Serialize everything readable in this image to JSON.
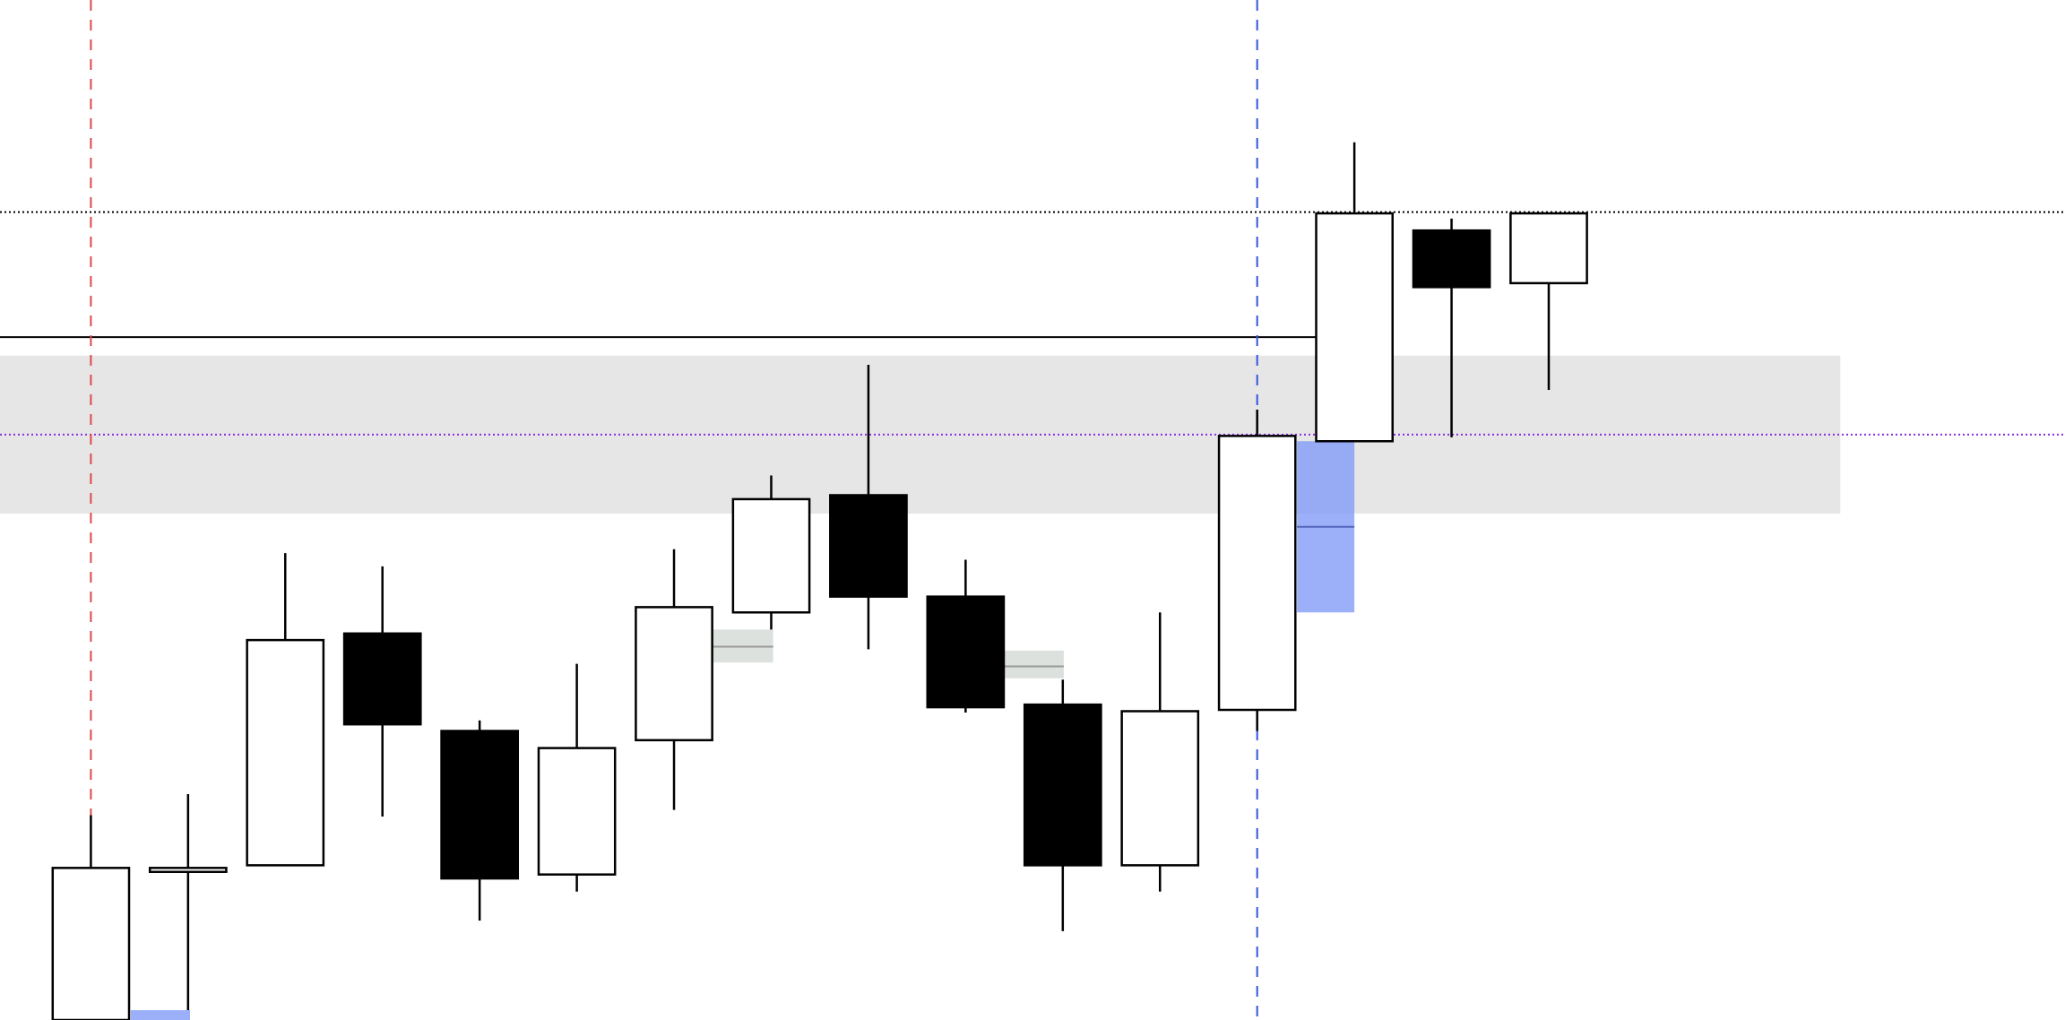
{
  "chart_data": {
    "type": "candlestick",
    "title": "",
    "xlabel": "",
    "ylabel": "",
    "axes_visible": false,
    "grid": false,
    "ylim": [
      0,
      774
    ],
    "xlim_index": [
      -0.94,
      20.3
    ],
    "candles": [
      {
        "o": -30,
        "h": 155,
        "l": -40,
        "c": 115
      },
      {
        "o": 112,
        "h": 171,
        "l": 7,
        "c": 115
      },
      {
        "o": 117,
        "h": 354,
        "l": 117,
        "c": 288
      },
      {
        "o": 293,
        "h": 344,
        "l": 154,
        "c": 224
      },
      {
        "o": 219,
        "h": 227,
        "l": 75,
        "c": 107
      },
      {
        "o": 110,
        "h": 270,
        "l": 97,
        "c": 206
      },
      {
        "o": 212,
        "h": 357,
        "l": 159,
        "c": 313
      },
      {
        "o": 309,
        "h": 413,
        "l": 296,
        "c": 395
      },
      {
        "o": 398,
        "h": 497,
        "l": 281,
        "c": 321
      },
      {
        "o": 321,
        "h": 349,
        "l": 233,
        "c": 237
      },
      {
        "o": 239,
        "h": 258,
        "l": 67,
        "c": 117
      },
      {
        "o": 117,
        "h": 309,
        "l": 97,
        "c": 234
      },
      {
        "o": 235,
        "h": 463,
        "l": 219,
        "c": 443
      },
      {
        "o": 439,
        "h": 666,
        "l": 439,
        "c": 612
      },
      {
        "o": 599,
        "h": 608,
        "l": 442,
        "c": 556
      },
      {
        "o": 559,
        "h": 612,
        "l": 478,
        "c": 612
      }
    ],
    "horizontal_levels": [
      {
        "price": 613,
        "style": "dotted",
        "color": "#000000",
        "from_index": null,
        "to_index": null
      },
      {
        "price": 444,
        "style": "dotted",
        "color": "#8a2be2",
        "from_index": null,
        "to_index": null
      },
      {
        "price": 518,
        "style": "solid",
        "color": "#000000",
        "from_index": null,
        "to_index": 13
      }
    ],
    "vertical_markers": [
      {
        "index": 0,
        "color": "#e0474c",
        "style": "dashed",
        "from_price": 155
      },
      {
        "index": 12,
        "color": "#3355dd",
        "style": "dashed",
        "from_price": 0
      }
    ],
    "zones": [
      {
        "kind": "band",
        "from_index": null,
        "to_index": 18,
        "price_top": 504,
        "price_bottom": 384,
        "color": "#e6e6e6",
        "mid": null
      },
      {
        "kind": "imbalance",
        "from_index": 12.41,
        "to_index": 13,
        "price_top": 439,
        "price_bottom": 309,
        "color": "#7f9af7",
        "mid": 374
      },
      {
        "kind": "imbalance",
        "from_index": 0.41,
        "to_index": 1.02,
        "price_top": 7,
        "price_bottom": -10,
        "color": "#7f9af7",
        "mid": null
      },
      {
        "kind": "gap",
        "from_index": 6.4,
        "to_index": 7.02,
        "price_top": 296,
        "price_bottom": 271,
        "color": "#dde1dd",
        "mid": 283
      },
      {
        "kind": "gap",
        "from_index": 9.4,
        "to_index": 10.01,
        "price_top": 280,
        "price_bottom": 259,
        "color": "#dde1dd",
        "mid": 268
      }
    ],
    "colors": {
      "bull": "#ffffff",
      "bear": "#000000",
      "outline": "#000000"
    }
  }
}
